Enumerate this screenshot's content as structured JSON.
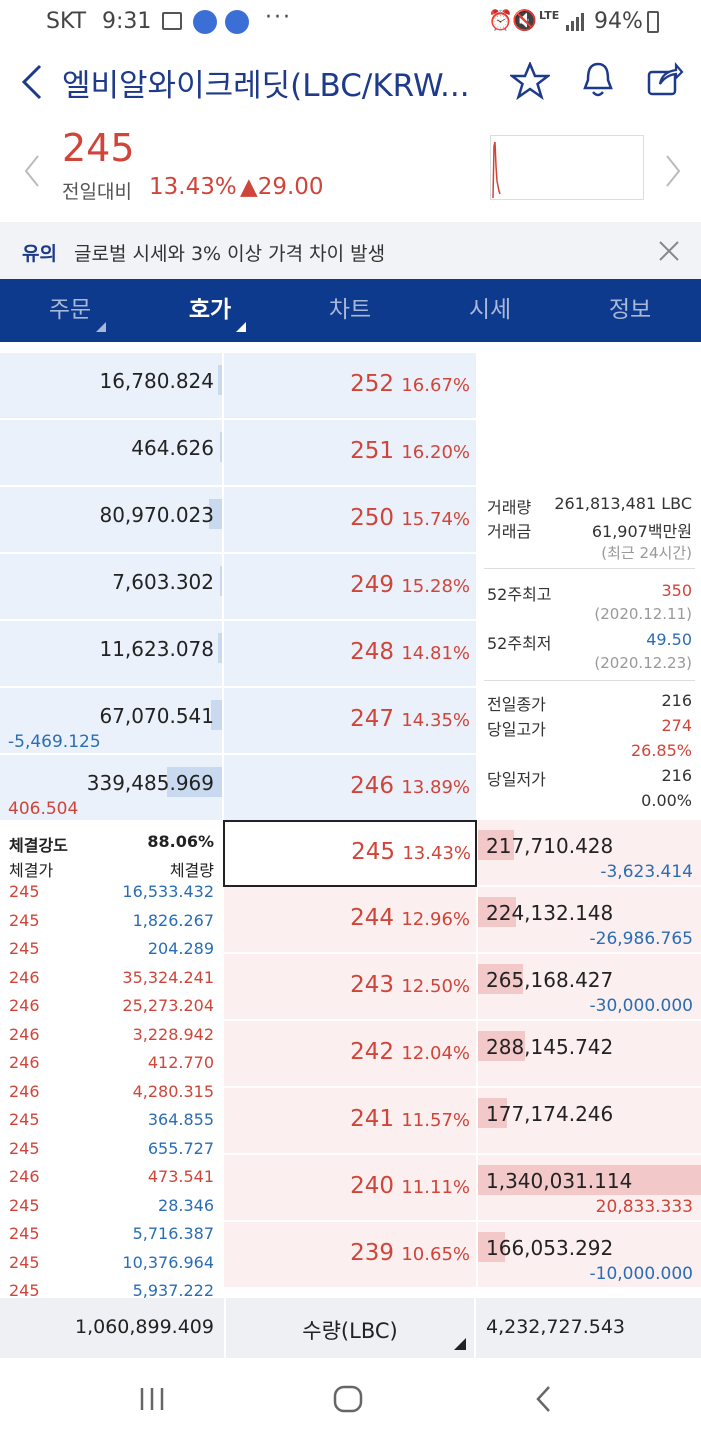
{
  "status_bar": {
    "carrier": "SKT",
    "time": "9:31",
    "lte_label": "LTE",
    "battery": "94%"
  },
  "header": {
    "title": "엘비알와이크레딧(LBC/KRW..."
  },
  "summary": {
    "price": "245",
    "change_label": "전일대비",
    "change_pct": "13.43%",
    "change_amount": "▲29.00"
  },
  "notice": {
    "label": "유의",
    "text": "글로벌 시세와 3% 이상 가격 차이 발생"
  },
  "tabs": [
    {
      "label": "주문"
    },
    {
      "label": "호가"
    },
    {
      "label": "차트"
    },
    {
      "label": "시세"
    },
    {
      "label": "정보"
    }
  ],
  "asks": [
    {
      "qty": "16,780.824",
      "price": "252",
      "pct": "16.67%",
      "bar": 0.02
    },
    {
      "qty": "464.626",
      "price": "251",
      "pct": "16.20%",
      "bar": 0.0
    },
    {
      "qty": "80,970.023",
      "price": "250",
      "pct": "15.74%",
      "bar": 0.06
    },
    {
      "qty": "7,603.302",
      "price": "249",
      "pct": "15.28%",
      "bar": 0.01
    },
    {
      "qty": "11,623.078",
      "price": "248",
      "pct": "14.81%",
      "bar": 0.02
    },
    {
      "qty": "67,070.541",
      "price": "247",
      "pct": "14.35%",
      "bar": 0.05,
      "sub": "-5,469.125",
      "sub_color": "blue"
    },
    {
      "qty": "339,485.969",
      "price": "246",
      "pct": "13.89%",
      "bar": 0.25,
      "sub": "406.504",
      "sub_color": "red"
    }
  ],
  "bids": [
    {
      "price": "245",
      "pct": "13.43%",
      "qty": "217,710.428",
      "bar": 0.16,
      "sub": "-3,623.414",
      "sub_color": "blue"
    },
    {
      "price": "244",
      "pct": "12.96%",
      "qty": "224,132.148",
      "bar": 0.17,
      "sub": "-26,986.765",
      "sub_color": "blue"
    },
    {
      "price": "243",
      "pct": "12.50%",
      "qty": "265,168.427",
      "bar": 0.2,
      "sub": "-30,000.000",
      "sub_color": "blue"
    },
    {
      "price": "242",
      "pct": "12.04%",
      "qty": "288,145.742",
      "bar": 0.21,
      "sub": "",
      "sub_color": "blue"
    },
    {
      "price": "241",
      "pct": "11.57%",
      "qty": "177,174.246",
      "bar": 0.13,
      "sub": "",
      "sub_color": "blue"
    },
    {
      "price": "240",
      "pct": "11.11%",
      "qty": "1,340,031.114",
      "bar": 1.0,
      "sub": "20,833.333",
      "sub_color": "red"
    },
    {
      "price": "239",
      "pct": "10.65%",
      "qty": "166,053.292",
      "bar": 0.12,
      "sub": "-10,000.000",
      "sub_color": "blue"
    }
  ],
  "stats": {
    "volume_label": "거래량",
    "volume_value": "261,813,481 LBC",
    "amount_label": "거래금",
    "amount_value": "61,907백만원",
    "recent_note": "(최근 24시간)",
    "high52_label": "52주최고",
    "high52_value": "350",
    "high52_date": "(2020.12.11)",
    "low52_label": "52주최저",
    "low52_value": "49.50",
    "low52_date": "(2020.12.23)",
    "prev_close_label": "전일종가",
    "prev_close_value": "216",
    "day_high_label": "당일고가",
    "day_high_value": "274",
    "day_high_pct": "26.85%",
    "day_low_label": "당일저가",
    "day_low_value": "216",
    "day_low_pct": "0.00%"
  },
  "ticks": {
    "strength_label": "체결강도",
    "strength_value": "88.06%",
    "col_price": "체결가",
    "col_qty": "체결량",
    "rows": [
      {
        "price": "245",
        "qty": "16,533.432",
        "side": "blue"
      },
      {
        "price": "245",
        "qty": "1,826.267",
        "side": "blue"
      },
      {
        "price": "245",
        "qty": "204.289",
        "side": "blue"
      },
      {
        "price": "246",
        "qty": "35,324.241",
        "side": "red"
      },
      {
        "price": "246",
        "qty": "25,273.204",
        "side": "red"
      },
      {
        "price": "246",
        "qty": "3,228.942",
        "side": "red"
      },
      {
        "price": "246",
        "qty": "412.770",
        "side": "red"
      },
      {
        "price": "246",
        "qty": "4,280.315",
        "side": "red"
      },
      {
        "price": "245",
        "qty": "364.855",
        "side": "blue"
      },
      {
        "price": "245",
        "qty": "655.727",
        "side": "blue"
      },
      {
        "price": "246",
        "qty": "473.541",
        "side": "red"
      },
      {
        "price": "245",
        "qty": "28.346",
        "side": "blue"
      },
      {
        "price": "245",
        "qty": "5,716.387",
        "side": "blue"
      },
      {
        "price": "245",
        "qty": "10,376.964",
        "side": "blue"
      },
      {
        "price": "245",
        "qty": "5,937.222",
        "side": "blue"
      }
    ]
  },
  "footer": {
    "ask_total": "1,060,899.409",
    "unit_label": "수량(LBC)",
    "bid_total": "4,232,727.543"
  },
  "colors": {
    "up": "#d0453a",
    "down": "#2a6db5",
    "brand": "#0d3a8c"
  },
  "icons": {
    "back": "back-arrow-icon",
    "favorite": "star-icon",
    "alarm": "bell-icon",
    "share": "share-icon"
  }
}
